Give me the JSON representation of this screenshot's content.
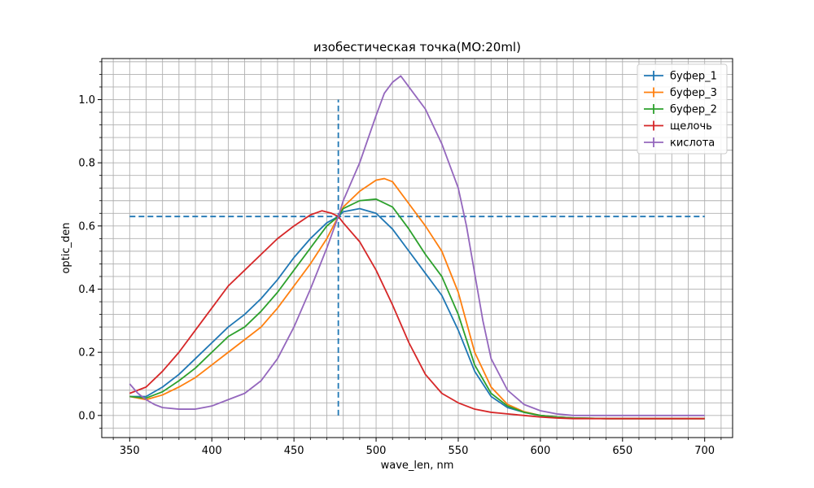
{
  "chart_data": {
    "type": "line",
    "title": "изобестическая точка(МО:20ml)",
    "xlabel": "wave_len, nm",
    "ylabel": "optic_den",
    "xlim": [
      333,
      717
    ],
    "ylim": [
      -0.07,
      1.13
    ],
    "x_ticks": [
      350,
      400,
      450,
      500,
      550,
      600,
      650,
      700
    ],
    "x_tick_labels": [
      "350",
      "400",
      "450",
      "500",
      "550",
      "600",
      "650",
      "700"
    ],
    "y_ticks": [
      0.0,
      0.2,
      0.4,
      0.6,
      0.8,
      1.0
    ],
    "y_tick_labels": [
      "0.0",
      "0.2",
      "0.4",
      "0.6",
      "0.8",
      "1.0"
    ],
    "x_minor_step": 10,
    "y_minor_step": 0.04,
    "grid": "major and minor",
    "legend_position": "top-right",
    "series": [
      {
        "name": "буфер_1",
        "color": "#1f77b4",
        "x": [
          350,
          360,
          370,
          380,
          390,
          400,
          410,
          420,
          430,
          440,
          450,
          460,
          470,
          477,
          480,
          490,
          500,
          510,
          520,
          530,
          540,
          550,
          560,
          570,
          580,
          590,
          600,
          610,
          620,
          640,
          660,
          680,
          700
        ],
        "y": [
          0.06,
          0.06,
          0.09,
          0.13,
          0.18,
          0.23,
          0.28,
          0.32,
          0.37,
          0.43,
          0.5,
          0.56,
          0.61,
          0.63,
          0.645,
          0.655,
          0.64,
          0.59,
          0.52,
          0.45,
          0.38,
          0.27,
          0.14,
          0.06,
          0.025,
          0.01,
          0.0,
          -0.005,
          -0.008,
          -0.01,
          -0.01,
          -0.01,
          -0.01
        ]
      },
      {
        "name": "буфер_3",
        "color": "#ff7f0e",
        "x": [
          350,
          360,
          370,
          380,
          390,
          400,
          410,
          420,
          430,
          440,
          450,
          460,
          470,
          477,
          480,
          490,
          500,
          505,
          510,
          520,
          530,
          540,
          550,
          560,
          570,
          580,
          590,
          600,
          610,
          620,
          640,
          660,
          680,
          700
        ],
        "y": [
          0.06,
          0.05,
          0.065,
          0.09,
          0.12,
          0.16,
          0.2,
          0.24,
          0.28,
          0.34,
          0.41,
          0.48,
          0.56,
          0.63,
          0.66,
          0.71,
          0.745,
          0.75,
          0.74,
          0.67,
          0.6,
          0.52,
          0.39,
          0.2,
          0.09,
          0.035,
          0.012,
          0.0,
          -0.005,
          -0.008,
          -0.01,
          -0.01,
          -0.01,
          -0.01
        ]
      },
      {
        "name": "буфер_2",
        "color": "#2ca02c",
        "x": [
          350,
          360,
          370,
          380,
          390,
          400,
          410,
          420,
          430,
          440,
          450,
          460,
          470,
          477,
          480,
          490,
          500,
          510,
          520,
          530,
          540,
          550,
          560,
          570,
          580,
          590,
          600,
          610,
          620,
          640,
          660,
          680,
          700
        ],
        "y": [
          0.06,
          0.055,
          0.075,
          0.11,
          0.15,
          0.2,
          0.25,
          0.28,
          0.33,
          0.39,
          0.46,
          0.53,
          0.6,
          0.63,
          0.655,
          0.68,
          0.685,
          0.66,
          0.59,
          0.51,
          0.44,
          0.32,
          0.16,
          0.07,
          0.03,
          0.01,
          0.0,
          -0.005,
          -0.008,
          -0.01,
          -0.01,
          -0.01,
          -0.01
        ]
      },
      {
        "name": "щелочь",
        "color": "#d62728",
        "x": [
          350,
          360,
          370,
          380,
          390,
          400,
          410,
          420,
          430,
          440,
          450,
          460,
          467,
          473,
          477,
          480,
          490,
          500,
          510,
          520,
          530,
          540,
          550,
          560,
          570,
          580,
          590,
          600,
          610,
          620,
          640,
          660,
          680,
          700
        ],
        "y": [
          0.07,
          0.09,
          0.14,
          0.2,
          0.27,
          0.34,
          0.41,
          0.46,
          0.51,
          0.56,
          0.6,
          0.635,
          0.648,
          0.64,
          0.63,
          0.61,
          0.55,
          0.46,
          0.35,
          0.23,
          0.13,
          0.07,
          0.04,
          0.02,
          0.01,
          0.005,
          0.0,
          -0.005,
          -0.008,
          -0.01,
          -0.01,
          -0.01,
          -0.01,
          -0.01
        ]
      },
      {
        "name": "кислота",
        "color": "#9467bd",
        "x": [
          350,
          355,
          360,
          365,
          370,
          380,
          390,
          400,
          410,
          420,
          430,
          440,
          450,
          460,
          470,
          477,
          480,
          490,
          500,
          505,
          510,
          515,
          520,
          530,
          540,
          550,
          555,
          560,
          565,
          570,
          580,
          590,
          600,
          610,
          620,
          640,
          660,
          680,
          700
        ],
        "y": [
          0.1,
          0.07,
          0.05,
          0.035,
          0.025,
          0.02,
          0.02,
          0.03,
          0.05,
          0.07,
          0.11,
          0.18,
          0.28,
          0.4,
          0.53,
          0.63,
          0.68,
          0.8,
          0.95,
          1.02,
          1.055,
          1.075,
          1.04,
          0.97,
          0.86,
          0.72,
          0.6,
          0.45,
          0.3,
          0.18,
          0.08,
          0.035,
          0.015,
          0.005,
          0.0,
          0.0,
          0.0,
          0.0,
          0.0
        ]
      }
    ],
    "reference_lines": [
      {
        "orientation": "horizontal",
        "y": 0.63,
        "x_from": 350,
        "x_to": 700,
        "color": "#1f77b4",
        "style": "dashed"
      },
      {
        "orientation": "vertical",
        "x": 477,
        "y_from": 0.0,
        "y_to": 1.0,
        "color": "#1f77b4",
        "style": "dashed"
      }
    ]
  }
}
